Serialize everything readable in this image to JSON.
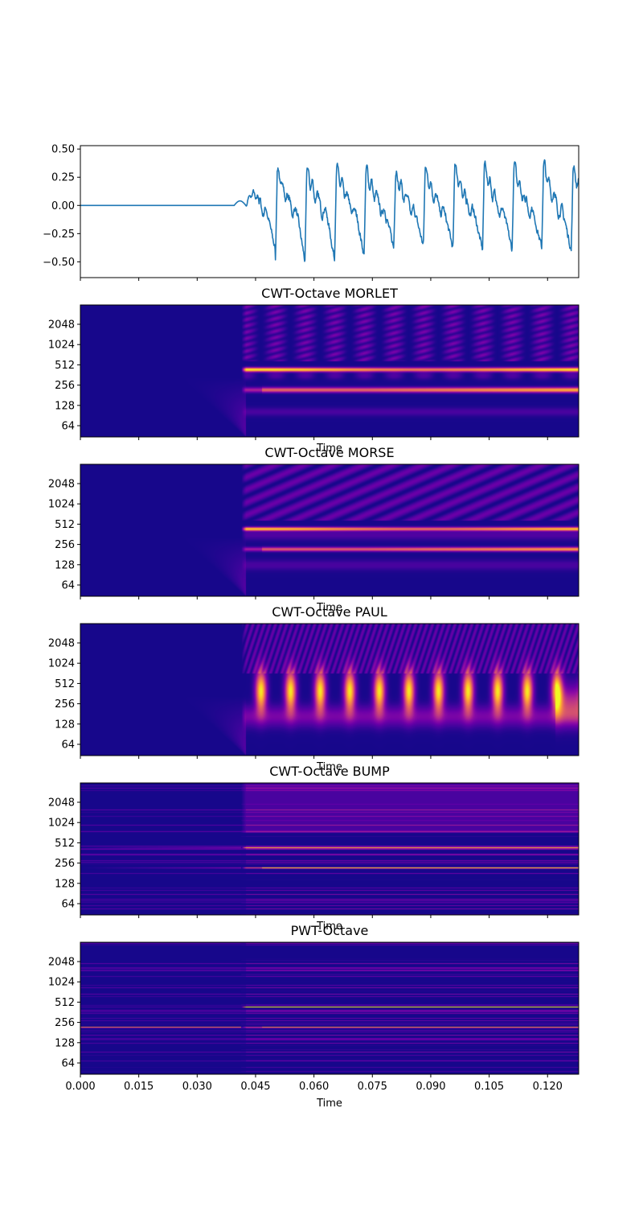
{
  "chart_data": [
    {
      "type": "line",
      "title": "",
      "xlabel": "",
      "ylabel": "",
      "color": "#1f77b4",
      "xlim": [
        0.0,
        0.128
      ],
      "ylim": [
        -0.64,
        0.53
      ],
      "yticks": [
        0.5,
        0.25,
        0.0,
        -0.25,
        -0.5
      ],
      "ytick_labels": [
        "0.50",
        "0.25",
        "0.00",
        "−0.25",
        "−0.50"
      ],
      "onset": 0.0425,
      "period": 0.0076,
      "peaks": [
        0.38,
        0.3,
        0.3,
        0.32,
        0.3,
        0.28,
        0.32,
        0.34,
        0.35,
        0.34,
        0.35,
        0.32,
        0.35,
        0.39,
        0.34,
        0.36,
        0.38
      ],
      "troughs": [
        -0.4,
        -0.5,
        -0.48,
        -0.45,
        -0.38,
        -0.36,
        -0.38,
        -0.4,
        -0.4,
        -0.38,
        -0.4,
        -0.38,
        -0.4,
        -0.38,
        -0.4,
        -0.42
      ]
    },
    {
      "type": "heatmap",
      "title": "CWT-Octave MORLET",
      "xlabel": "Time",
      "yticks": [
        "2048",
        "1024",
        "512",
        "256",
        "128",
        "64"
      ],
      "colormap": "plasma",
      "bands": [
        {
          "freq": 440,
          "strength": 0.95,
          "width": 0.1
        },
        {
          "freq": 220,
          "strength": 0.85,
          "width": 0.12
        }
      ],
      "pattern": "beaded-harmonics"
    },
    {
      "type": "heatmap",
      "title": "CWT-Octave MORSE",
      "xlabel": "Time",
      "yticks": [
        "2048",
        "1024",
        "512",
        "256",
        "128",
        "64"
      ],
      "colormap": "plasma",
      "bands": [
        {
          "freq": 440,
          "strength": 0.85,
          "width": 0.09
        },
        {
          "freq": 220,
          "strength": 0.8,
          "width": 0.1
        }
      ],
      "pattern": "smooth-harmonics"
    },
    {
      "type": "heatmap",
      "title": "CWT-Octave PAUL",
      "xlabel": "Time",
      "yticks": [
        "2048",
        "1024",
        "512",
        "256",
        "128",
        "64"
      ],
      "colormap": "plasma",
      "bands": [
        {
          "freq": 400,
          "strength": 0.95,
          "width": 0.35
        }
      ],
      "pattern": "pulse-train"
    },
    {
      "type": "heatmap",
      "title": "CWT-Octave BUMP",
      "xlabel": "Time",
      "yticks": [
        "2048",
        "1024",
        "512",
        "256",
        "128",
        "64"
      ],
      "colormap": "plasma",
      "bands": [
        {
          "freq": 440,
          "strength": 0.85,
          "width": 0.03
        },
        {
          "freq": 220,
          "strength": 0.9,
          "width": 0.03
        }
      ],
      "pattern": "thin-lines"
    },
    {
      "type": "heatmap",
      "title": "PWT-Octave",
      "xlabel": "Time",
      "yticks": [
        "2048",
        "1024",
        "512",
        "256",
        "128",
        "64"
      ],
      "xticks": [
        "0.000",
        "0.015",
        "0.030",
        "0.045",
        "0.060",
        "0.075",
        "0.090",
        "0.105",
        "0.120"
      ],
      "colormap": "plasma",
      "bands": [
        {
          "freq": 440,
          "strength": 0.85,
          "width": 0.015
        },
        {
          "freq": 220,
          "strength": 0.75,
          "width": 0.015
        }
      ],
      "pattern": "fine-lines"
    }
  ]
}
